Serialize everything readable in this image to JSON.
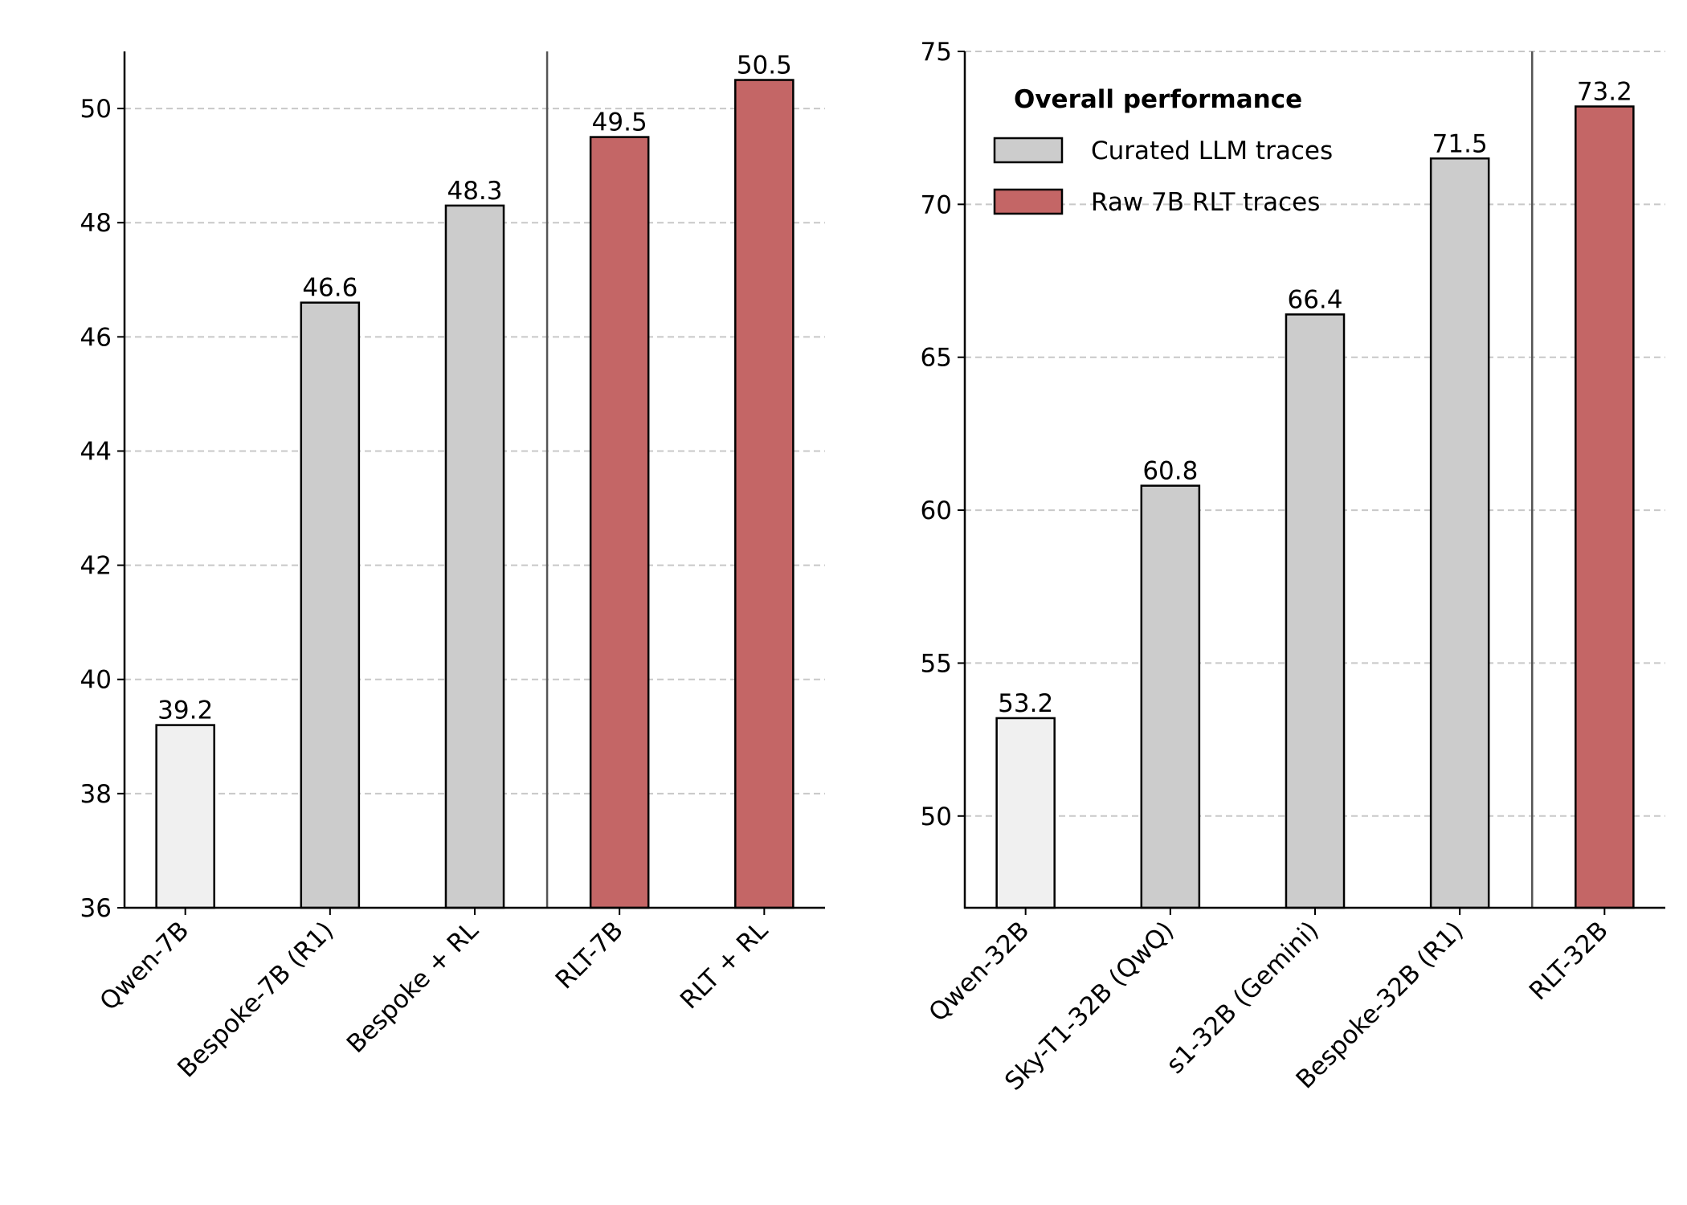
{
  "chart_data": [
    {
      "type": "bar",
      "categories": [
        "Qwen-7B",
        "Bespoke-7B (R1)",
        "Bespoke + RL",
        "RLT-7B",
        "RLT + RL"
      ],
      "values": [
        39.2,
        46.6,
        48.3,
        49.5,
        50.5
      ],
      "colors": [
        "#f0f0f0",
        "#cccccc",
        "#cccccc",
        "#c46666",
        "#c46666"
      ],
      "ylim": [
        36,
        51
      ],
      "yticks": [
        36,
        38,
        40,
        42,
        44,
        46,
        48,
        50
      ],
      "grid": true
    },
    {
      "type": "bar",
      "categories": [
        "Qwen-32B",
        "Sky-T1-32B (QwQ)",
        "s1-32B (Gemini)",
        "Bespoke-32B (R1)",
        "RLT-32B"
      ],
      "values": [
        53.2,
        60.8,
        66.4,
        71.5,
        73.2
      ],
      "colors": [
        "#f0f0f0",
        "#cccccc",
        "#cccccc",
        "#cccccc",
        "#c46666"
      ],
      "ylim": [
        47,
        75
      ],
      "yticks": [
        50,
        55,
        60,
        65,
        70,
        75
      ],
      "grid": true,
      "legend": {
        "title": "Overall performance",
        "position": "upper left",
        "items": [
          {
            "label": "Curated LLM traces",
            "color": "#cccccc"
          },
          {
            "label": "Raw 7B RLT traces",
            "color": "#c46666"
          }
        ]
      }
    }
  ]
}
